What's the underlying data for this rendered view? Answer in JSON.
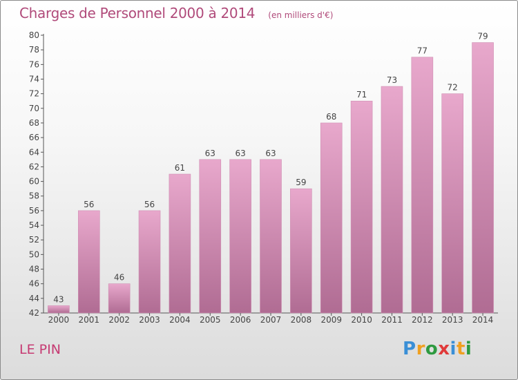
{
  "header": {
    "title": "Charges de Personnel 2000 à 2014",
    "unit": "(en milliers d'€)"
  },
  "footer": {
    "commune": "LE PIN",
    "logo": {
      "letters": [
        "P",
        "r",
        "o",
        "x",
        "i",
        "t",
        "i"
      ],
      "colors": [
        "#3a8fd6",
        "#f0a020",
        "#2e9a40",
        "#e03a3a",
        "#3a8fd6",
        "#f0a020",
        "#2e9a40"
      ]
    }
  },
  "chart_data": {
    "type": "bar",
    "title": "Charges de Personnel 2000 à 2014",
    "subtitle": "(en milliers d'€)",
    "xlabel": "",
    "ylabel": "",
    "categories": [
      "2000",
      "2001",
      "2002",
      "2003",
      "2004",
      "2005",
      "2006",
      "2007",
      "2008",
      "2009",
      "2010",
      "2011",
      "2012",
      "2013",
      "2014"
    ],
    "values": [
      43,
      56,
      46,
      56,
      61,
      63,
      63,
      63,
      59,
      68,
      71,
      73,
      77,
      72,
      79
    ],
    "ylim": [
      42,
      80
    ],
    "ytick_step": 2,
    "grid": false,
    "colors": {
      "bar_top": "#e8a8cc",
      "bar_bottom": "#b06c93",
      "bar_edge": "#cf8fb3",
      "axis": "#555555",
      "label": "#444444"
    }
  }
}
